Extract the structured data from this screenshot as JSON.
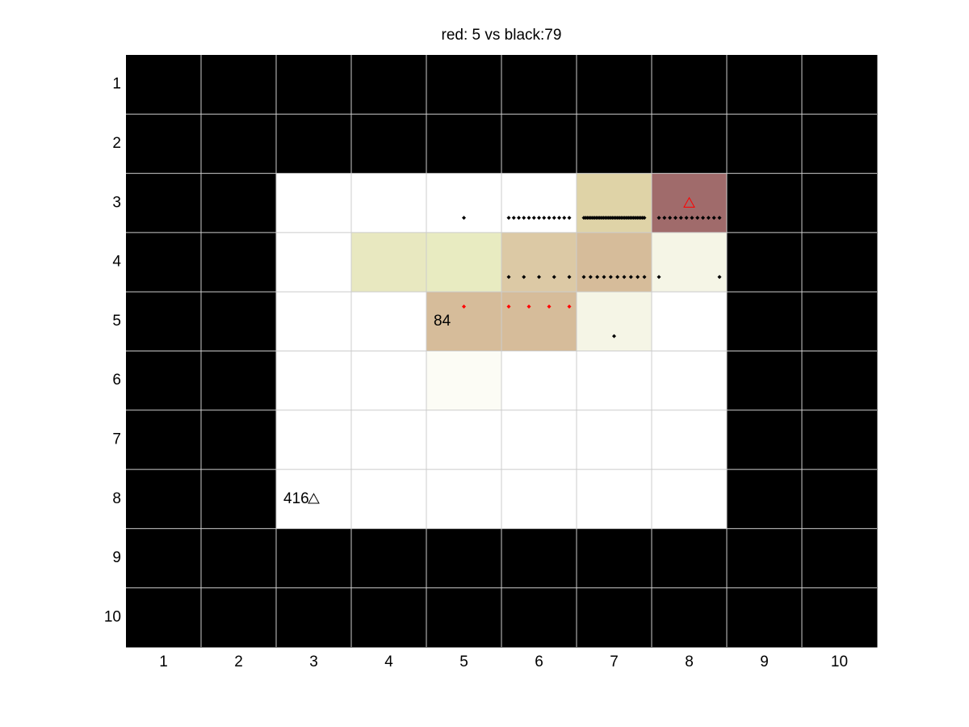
{
  "chart_data": {
    "type": "grid",
    "title": "red: 5 vs black:79",
    "xlim": [
      0.5,
      10.5
    ],
    "ylim": [
      0.5,
      10.5
    ],
    "y_reversed": true,
    "xticks": [
      1,
      2,
      3,
      4,
      5,
      6,
      7,
      8,
      9,
      10
    ],
    "yticks": [
      1,
      2,
      3,
      4,
      5,
      6,
      7,
      8,
      9,
      10
    ],
    "grid": true,
    "grid_color": "#cccccc",
    "cell_colors": [
      [
        "#000000",
        "#000000",
        "#000000",
        "#000000",
        "#000000",
        "#000000",
        "#000000",
        "#000000",
        "#000000",
        "#000000"
      ],
      [
        "#000000",
        "#000000",
        "#000000",
        "#000000",
        "#000000",
        "#000000",
        "#000000",
        "#000000",
        "#000000",
        "#000000"
      ],
      [
        "#000000",
        "#000000",
        "#ffffff",
        "#ffffff",
        "#ffffff",
        "#ffffff",
        "#dfd3a7",
        "#a06b6b",
        "#000000",
        "#000000"
      ],
      [
        "#000000",
        "#000000",
        "#ffffff",
        "#e8e8c0",
        "#e8ebc1",
        "#dcc9a5",
        "#d6bc9a",
        "#f5f5e6",
        "#000000",
        "#000000"
      ],
      [
        "#000000",
        "#000000",
        "#ffffff",
        "#ffffff",
        "#d6bc9a",
        "#d6bc9a",
        "#f5f5e6",
        "#ffffff",
        "#000000",
        "#000000"
      ],
      [
        "#000000",
        "#000000",
        "#ffffff",
        "#ffffff",
        "#fcfcf5",
        "#ffffff",
        "#ffffff",
        "#ffffff",
        "#000000",
        "#000000"
      ],
      [
        "#000000",
        "#000000",
        "#ffffff",
        "#ffffff",
        "#ffffff",
        "#ffffff",
        "#ffffff",
        "#ffffff",
        "#000000",
        "#000000"
      ],
      [
        "#000000",
        "#000000",
        "#ffffff",
        "#ffffff",
        "#ffffff",
        "#ffffff",
        "#ffffff",
        "#ffffff",
        "#000000",
        "#000000"
      ],
      [
        "#000000",
        "#000000",
        "#000000",
        "#000000",
        "#000000",
        "#000000",
        "#000000",
        "#000000",
        "#000000",
        "#000000"
      ],
      [
        "#000000",
        "#000000",
        "#000000",
        "#000000",
        "#000000",
        "#000000",
        "#000000",
        "#000000",
        "#000000",
        "#000000"
      ]
    ],
    "dot_groups": [
      {
        "col": 5,
        "row": 3,
        "count": 1,
        "color": "#000000"
      },
      {
        "col": 6,
        "row": 3,
        "count": 13,
        "color": "#000000"
      },
      {
        "col": 7,
        "row": 3,
        "count": 35,
        "color": "#000000"
      },
      {
        "col": 8,
        "row": 3,
        "count": 12,
        "color": "#000000"
      },
      {
        "col": 6,
        "row": 4,
        "count": 5,
        "color": "#000000"
      },
      {
        "col": 7,
        "row": 4,
        "count": 10,
        "color": "#000000"
      },
      {
        "col": 8,
        "row": 4,
        "count": 2,
        "color": "#000000"
      },
      {
        "col": 7,
        "row": 5,
        "count": 1,
        "color": "#000000"
      },
      {
        "col": 5,
        "row": 5,
        "count": 1,
        "color": "#ff0000"
      },
      {
        "col": 6,
        "row": 5,
        "count": 4,
        "color": "#ff0000"
      }
    ],
    "triangles": [
      {
        "x": 8,
        "y": 3,
        "color": "#ff0000"
      },
      {
        "x": 3,
        "y": 8,
        "color": "#000000"
      }
    ],
    "cell_labels": [
      {
        "text": 84,
        "x": 5,
        "y": 5
      },
      {
        "text": 416,
        "x": 3,
        "y": 8
      }
    ]
  }
}
